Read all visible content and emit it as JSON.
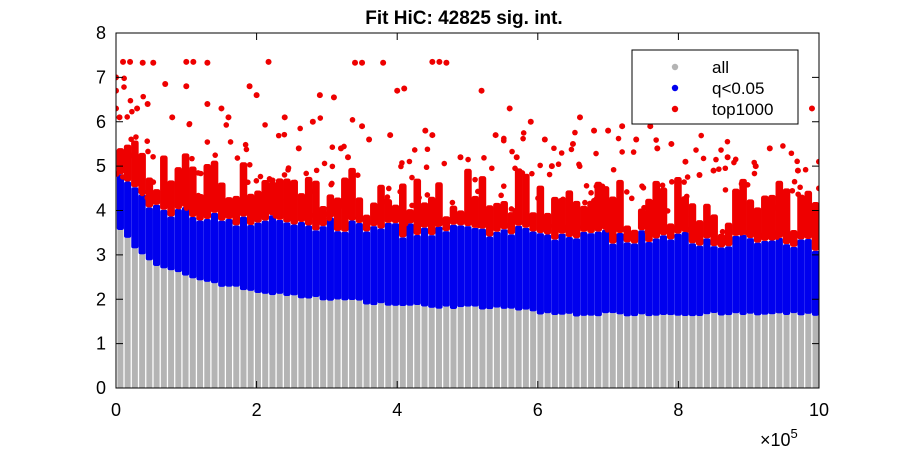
{
  "chart_data": {
    "type": "scatter",
    "title": "Fit HiC: 42825 sig. int.",
    "xlabel": "",
    "ylabel": "",
    "x_exponent_label": "×10",
    "x_exponent": "5",
    "xlim": [
      0,
      10
    ],
    "ylim": [
      0,
      8
    ],
    "x_ticks": [
      0,
      2,
      4,
      6,
      8,
      10
    ],
    "y_ticks": [
      0,
      1,
      2,
      3,
      4,
      5,
      6,
      7,
      8
    ],
    "x_tick_labels": [
      "0",
      "2",
      "4",
      "6",
      "8",
      "10"
    ],
    "y_tick_labels": [
      "0",
      "1",
      "2",
      "3",
      "4",
      "5",
      "6",
      "7",
      "8"
    ],
    "grid": false,
    "legend_position": "top-right",
    "series": [
      {
        "name": "all",
        "color": "#b4b4b4",
        "description_from_plot": "dense columns of points spanning y=0 up to the significance boundary at every distance bin",
        "boundary_x": [
          0.05,
          0.2,
          0.5,
          1.0,
          1.5,
          2.0,
          2.5,
          3.0,
          4.0,
          5.0,
          5.9,
          6.0,
          7.0,
          8.0,
          9.0,
          10.0
        ],
        "boundary_y": [
          3.6,
          3.2,
          2.75,
          2.5,
          2.3,
          2.15,
          2.05,
          2.0,
          1.85,
          1.8,
          1.75,
          1.65,
          1.65,
          1.65,
          1.65,
          1.65
        ]
      },
      {
        "name": "q<0.05",
        "color": "#0000ee",
        "description_from_plot": "band from the significance boundary up to the top1000 threshold",
        "upper_x": [
          0.05,
          0.5,
          1.0,
          2.0,
          3.0,
          4.0,
          5.0,
          6.0,
          7.0,
          8.0,
          9.0,
          10.0
        ],
        "upper_y": [
          4.6,
          4.0,
          3.85,
          3.7,
          3.6,
          3.5,
          3.45,
          3.4,
          3.35,
          3.3,
          3.25,
          3.1
        ]
      },
      {
        "name": "top1000",
        "color": "#ee0000",
        "description_from_plot": "scattered high-scoring interactions above ~3.5; saturate at ~7.35",
        "points": [
          [
            0.0,
            7.0
          ],
          [
            0.0,
            6.7
          ],
          [
            0.1,
            7.35
          ],
          [
            0.2,
            7.35
          ],
          [
            0.38,
            7.33
          ],
          [
            0.53,
            7.33
          ],
          [
            1.0,
            7.35
          ],
          [
            1.1,
            7.35
          ],
          [
            1.3,
            7.33
          ],
          [
            2.17,
            7.35
          ],
          [
            3.4,
            7.33
          ],
          [
            3.5,
            7.33
          ],
          [
            3.8,
            7.33
          ],
          [
            4.5,
            7.35
          ],
          [
            4.6,
            7.35
          ],
          [
            4.7,
            7.33
          ],
          [
            0.0,
            6.3
          ],
          [
            0.05,
            6.1
          ],
          [
            0.3,
            6.3
          ],
          [
            0.45,
            6.4
          ],
          [
            0.7,
            6.85
          ],
          [
            0.8,
            6.1
          ],
          [
            1.0,
            6.8
          ],
          [
            1.3,
            6.4
          ],
          [
            1.5,
            6.3
          ],
          [
            1.6,
            6.1
          ],
          [
            1.9,
            6.8
          ],
          [
            2.0,
            6.6
          ],
          [
            2.4,
            6.1
          ],
          [
            2.6,
            5.4
          ],
          [
            2.8,
            6.0
          ],
          [
            2.9,
            6.6
          ],
          [
            3.1,
            6.55
          ],
          [
            3.2,
            5.4
          ],
          [
            3.3,
            5.2
          ],
          [
            3.5,
            5.9
          ],
          [
            3.6,
            5.6
          ],
          [
            3.9,
            5.7
          ],
          [
            4.0,
            6.7
          ],
          [
            4.1,
            6.75
          ],
          [
            4.4,
            5.8
          ],
          [
            4.5,
            5.7
          ],
          [
            4.9,
            5.2
          ],
          [
            5.2,
            6.7
          ],
          [
            5.4,
            5.7
          ],
          [
            5.6,
            6.3
          ],
          [
            5.7,
            5.2
          ],
          [
            5.9,
            6.0
          ],
          [
            6.1,
            5.6
          ],
          [
            6.2,
            5.0
          ],
          [
            6.5,
            5.5
          ],
          [
            6.6,
            6.1
          ],
          [
            6.8,
            5.8
          ],
          [
            7.0,
            5.8
          ],
          [
            7.2,
            5.9
          ],
          [
            7.4,
            5.6
          ],
          [
            7.6,
            5.9
          ],
          [
            7.7,
            5.4
          ],
          [
            7.9,
            5.5
          ],
          [
            8.1,
            5.1
          ],
          [
            8.3,
            4.8
          ],
          [
            8.5,
            4.9
          ],
          [
            8.7,
            5.2
          ],
          [
            8.9,
            4.6
          ],
          [
            9.1,
            5.0
          ],
          [
            9.3,
            5.4
          ],
          [
            9.5,
            4.4
          ],
          [
            9.7,
            4.9
          ],
          [
            9.9,
            6.3
          ],
          [
            10.0,
            5.1
          ],
          [
            10.0,
            4.5
          ],
          [
            9.95,
            3.4
          ]
        ]
      }
    ]
  }
}
